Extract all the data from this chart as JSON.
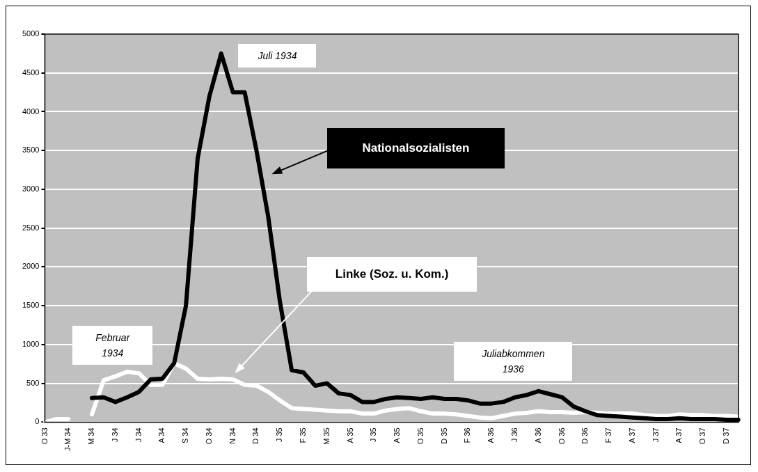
{
  "chart_data": {
    "type": "line",
    "categories": [
      "O 33",
      null,
      "J-M 34",
      null,
      "M 34",
      null,
      "J 34",
      null,
      "J 34",
      null,
      "A 34",
      null,
      "S 34",
      null,
      "O 34",
      null,
      "N 34",
      null,
      "D 34",
      null,
      "J 35",
      null,
      "F 35",
      null,
      "M 35",
      null,
      "A 35",
      null,
      "J 35",
      null,
      "A 35",
      null,
      "O 35",
      null,
      "D 35",
      null,
      "F 36",
      null,
      "A 36",
      null,
      "J 36",
      null,
      "A 36",
      null,
      "O 36",
      null,
      "D 36",
      null,
      "F 37",
      null,
      "A 37",
      null,
      "J 37",
      null,
      "A 37",
      null,
      "O 37",
      null,
      "D 37",
      null
    ],
    "series": [
      {
        "name": "Nationalsozialisten",
        "color": "#000000",
        "values": [
          null,
          null,
          null,
          null,
          310,
          320,
          260,
          320,
          390,
          550,
          560,
          760,
          1500,
          3400,
          4200,
          4750,
          4250,
          4250,
          3500,
          2650,
          1550,
          670,
          640,
          470,
          500,
          370,
          350,
          260,
          260,
          300,
          320,
          310,
          300,
          320,
          300,
          300,
          280,
          240,
          240,
          260,
          320,
          350,
          400,
          360,
          320,
          200,
          140,
          90,
          80,
          70,
          60,
          50,
          40,
          40,
          50,
          40,
          40,
          40,
          30,
          30
        ]
      },
      {
        "name": "Linke (Soz. u. Kom.)",
        "color": "#ffffff",
        "values": [
          0,
          40,
          40,
          null,
          100,
          540,
          590,
          650,
          630,
          480,
          480,
          760,
          690,
          560,
          550,
          560,
          550,
          480,
          470,
          390,
          280,
          180,
          170,
          160,
          150,
          140,
          140,
          110,
          110,
          150,
          170,
          180,
          140,
          110,
          110,
          100,
          80,
          60,
          50,
          80,
          110,
          120,
          140,
          130,
          130,
          120,
          130,
          120,
          110,
          110,
          110,
          90,
          80,
          80,
          100,
          90,
          90,
          80,
          80,
          70
        ]
      }
    ],
    "ylim": [
      0,
      5000
    ],
    "yticks": [
      0,
      500,
      1000,
      1500,
      2000,
      2500,
      3000,
      3500,
      4000,
      4500,
      5000
    ],
    "grid": "y",
    "legend": false,
    "marker": "none",
    "line_style": "solid",
    "annotations": [
      "Juli 1934",
      "Februar 1934",
      "Juliabkommen 1936"
    ]
  }
}
